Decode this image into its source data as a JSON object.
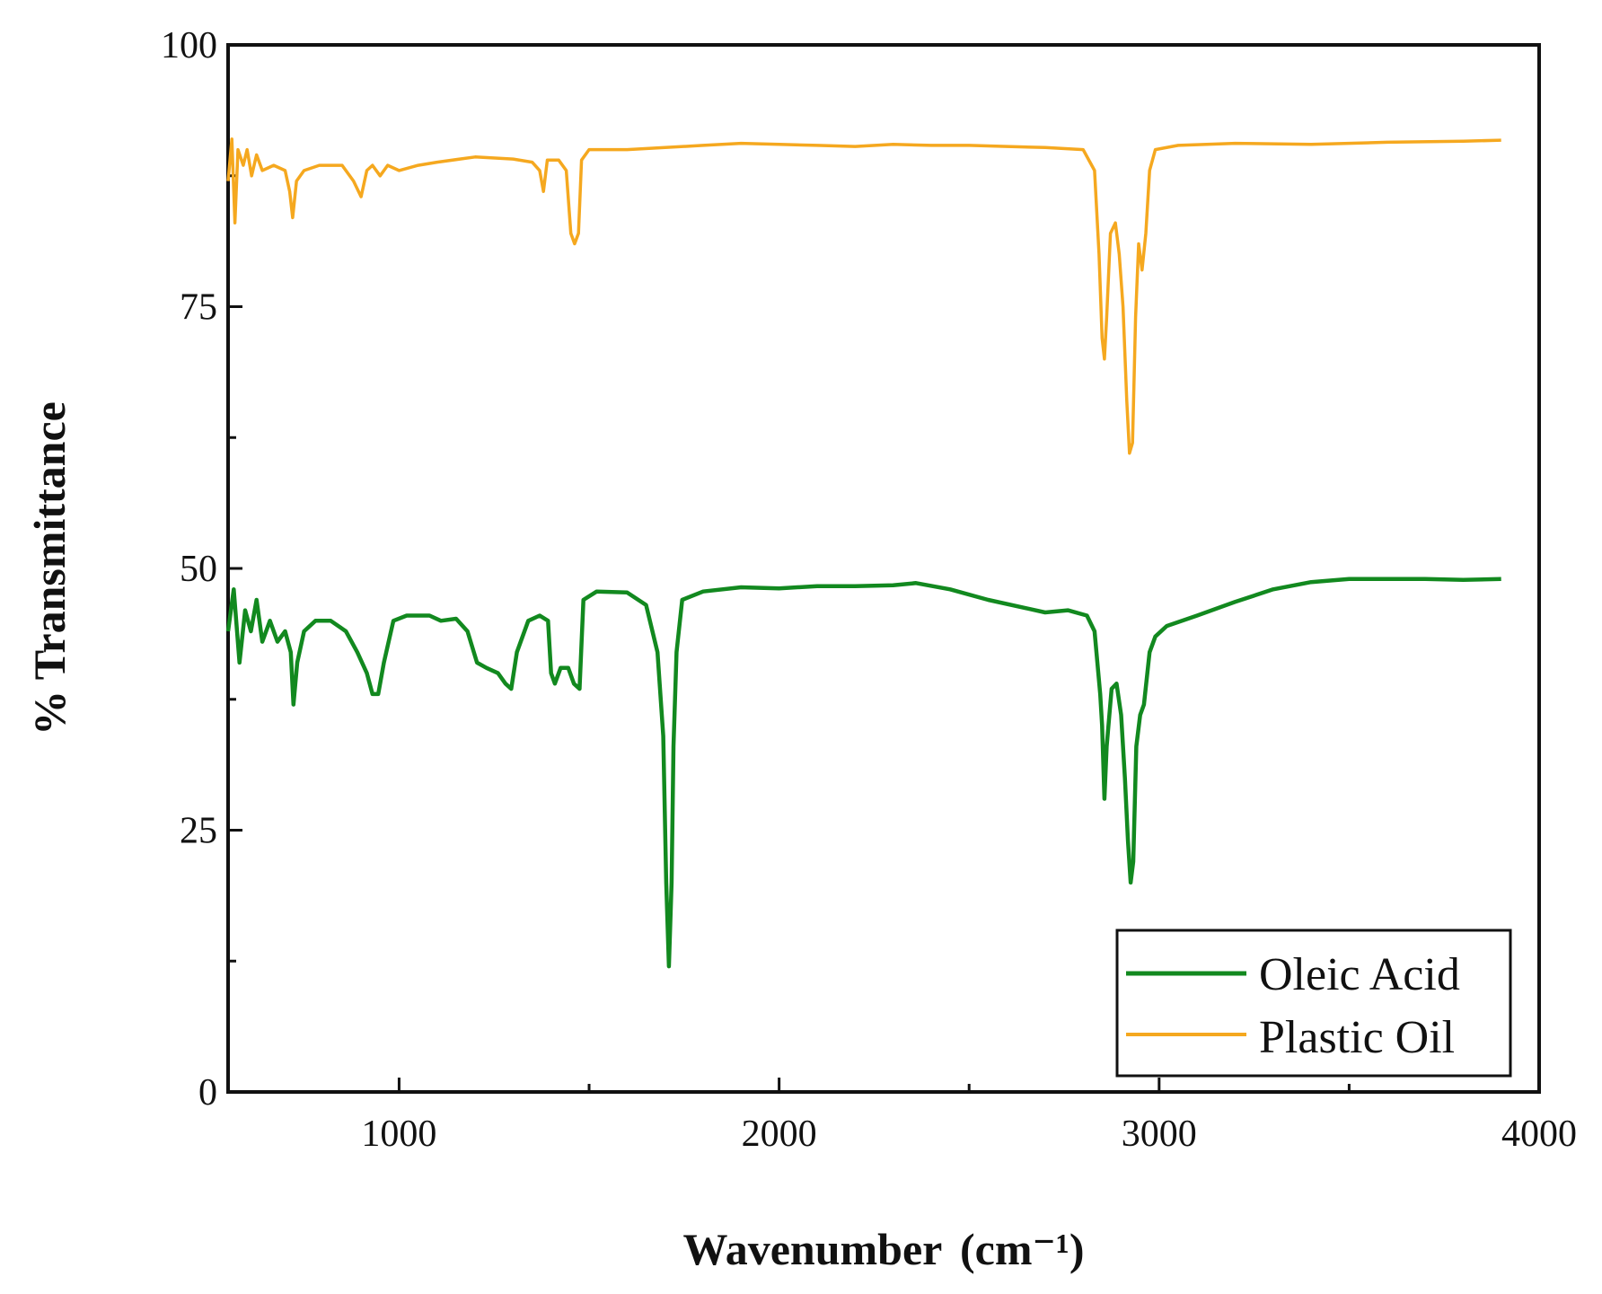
{
  "chart_data": {
    "type": "line",
    "title": "",
    "xlabel": "Wavenumber",
    "xlabel_unit": "(cm⁻¹)",
    "ylabel": "% Transmittance",
    "xlim": [
      550,
      4000
    ],
    "ylim": [
      0,
      100
    ],
    "x_ticks": [
      1000,
      2000,
      3000,
      4000
    ],
    "x_tick_labels": [
      "1000",
      "2000",
      "3000",
      "4000"
    ],
    "y_ticks": [
      0,
      25,
      50,
      75,
      100
    ],
    "y_tick_labels": [
      "0",
      "25",
      "50",
      "75",
      "100"
    ],
    "grid": false,
    "legend_position": "bottom-right",
    "series": [
      {
        "name": "Oleic Acid",
        "color": "#12891f",
        "points": [
          [
            550,
            44
          ],
          [
            565,
            48
          ],
          [
            580,
            41
          ],
          [
            595,
            46
          ],
          [
            610,
            44
          ],
          [
            625,
            47
          ],
          [
            640,
            43
          ],
          [
            660,
            45
          ],
          [
            680,
            43
          ],
          [
            700,
            44
          ],
          [
            715,
            42
          ],
          [
            722,
            37
          ],
          [
            732,
            41
          ],
          [
            750,
            44
          ],
          [
            780,
            45
          ],
          [
            820,
            45
          ],
          [
            860,
            44
          ],
          [
            890,
            42
          ],
          [
            915,
            40
          ],
          [
            930,
            38
          ],
          [
            945,
            38
          ],
          [
            960,
            41
          ],
          [
            985,
            45
          ],
          [
            1020,
            45.5
          ],
          [
            1080,
            45.5
          ],
          [
            1110,
            45
          ],
          [
            1150,
            45.2
          ],
          [
            1180,
            44
          ],
          [
            1205,
            41
          ],
          [
            1230,
            40.5
          ],
          [
            1260,
            40
          ],
          [
            1280,
            39
          ],
          [
            1295,
            38.5
          ],
          [
            1310,
            42
          ],
          [
            1340,
            45
          ],
          [
            1370,
            45.5
          ],
          [
            1392,
            45
          ],
          [
            1400,
            40
          ],
          [
            1410,
            39
          ],
          [
            1425,
            40.5
          ],
          [
            1445,
            40.5
          ],
          [
            1460,
            39
          ],
          [
            1475,
            38.5
          ],
          [
            1485,
            47
          ],
          [
            1520,
            47.8
          ],
          [
            1600,
            47.7
          ],
          [
            1650,
            46.5
          ],
          [
            1680,
            42
          ],
          [
            1695,
            34
          ],
          [
            1703,
            20
          ],
          [
            1710,
            12
          ],
          [
            1717,
            20
          ],
          [
            1722,
            33
          ],
          [
            1730,
            42
          ],
          [
            1745,
            47
          ],
          [
            1800,
            47.8
          ],
          [
            1900,
            48.2
          ],
          [
            2000,
            48.1
          ],
          [
            2100,
            48.3
          ],
          [
            2200,
            48.3
          ],
          [
            2300,
            48.4
          ],
          [
            2360,
            48.6
          ],
          [
            2450,
            48
          ],
          [
            2550,
            47
          ],
          [
            2650,
            46.2
          ],
          [
            2700,
            45.8
          ],
          [
            2760,
            46
          ],
          [
            2810,
            45.5
          ],
          [
            2830,
            44
          ],
          [
            2845,
            38
          ],
          [
            2850,
            35
          ],
          [
            2856,
            28
          ],
          [
            2862,
            33
          ],
          [
            2875,
            38.5
          ],
          [
            2888,
            39
          ],
          [
            2900,
            36
          ],
          [
            2910,
            30
          ],
          [
            2918,
            24
          ],
          [
            2925,
            20
          ],
          [
            2932,
            22
          ],
          [
            2940,
            33
          ],
          [
            2950,
            36
          ],
          [
            2960,
            37
          ],
          [
            2975,
            42
          ],
          [
            2990,
            43.5
          ],
          [
            3020,
            44.5
          ],
          [
            3100,
            45.5
          ],
          [
            3200,
            46.8
          ],
          [
            3300,
            48
          ],
          [
            3400,
            48.7
          ],
          [
            3500,
            49
          ],
          [
            3600,
            49
          ],
          [
            3700,
            49
          ],
          [
            3800,
            48.9
          ],
          [
            3900,
            49
          ]
        ]
      },
      {
        "name": "Plastic Oil",
        "color": "#f5a81f",
        "points": [
          [
            550,
            87
          ],
          [
            560,
            91
          ],
          [
            568,
            83
          ],
          [
            576,
            90
          ],
          [
            590,
            88.5
          ],
          [
            600,
            90
          ],
          [
            612,
            87.5
          ],
          [
            625,
            89.5
          ],
          [
            640,
            88
          ],
          [
            670,
            88.5
          ],
          [
            700,
            88
          ],
          [
            712,
            86
          ],
          [
            720,
            83.5
          ],
          [
            730,
            87
          ],
          [
            750,
            88
          ],
          [
            790,
            88.5
          ],
          [
            850,
            88.5
          ],
          [
            880,
            87
          ],
          [
            900,
            85.5
          ],
          [
            915,
            88
          ],
          [
            930,
            88.5
          ],
          [
            950,
            87.5
          ],
          [
            970,
            88.5
          ],
          [
            1000,
            88
          ],
          [
            1050,
            88.5
          ],
          [
            1100,
            88.8
          ],
          [
            1200,
            89.3
          ],
          [
            1300,
            89.1
          ],
          [
            1350,
            88.8
          ],
          [
            1370,
            88
          ],
          [
            1380,
            86
          ],
          [
            1390,
            89
          ],
          [
            1420,
            89
          ],
          [
            1440,
            88
          ],
          [
            1452,
            82
          ],
          [
            1462,
            81
          ],
          [
            1472,
            82
          ],
          [
            1480,
            89
          ],
          [
            1500,
            90
          ],
          [
            1600,
            90
          ],
          [
            1700,
            90.2
          ],
          [
            1800,
            90.4
          ],
          [
            1900,
            90.6
          ],
          [
            2000,
            90.5
          ],
          [
            2100,
            90.4
          ],
          [
            2200,
            90.3
          ],
          [
            2300,
            90.5
          ],
          [
            2400,
            90.4
          ],
          [
            2500,
            90.4
          ],
          [
            2600,
            90.3
          ],
          [
            2700,
            90.2
          ],
          [
            2800,
            90
          ],
          [
            2830,
            88
          ],
          [
            2842,
            80
          ],
          [
            2850,
            72
          ],
          [
            2856,
            70
          ],
          [
            2862,
            74
          ],
          [
            2872,
            82
          ],
          [
            2885,
            83
          ],
          [
            2895,
            80
          ],
          [
            2905,
            75
          ],
          [
            2915,
            66
          ],
          [
            2922,
            61
          ],
          [
            2930,
            62
          ],
          [
            2938,
            74
          ],
          [
            2946,
            81
          ],
          [
            2955,
            78.5
          ],
          [
            2965,
            82
          ],
          [
            2975,
            88
          ],
          [
            2990,
            90
          ],
          [
            3050,
            90.4
          ],
          [
            3200,
            90.6
          ],
          [
            3400,
            90.5
          ],
          [
            3600,
            90.7
          ],
          [
            3800,
            90.8
          ],
          [
            3900,
            90.9
          ]
        ]
      }
    ]
  }
}
